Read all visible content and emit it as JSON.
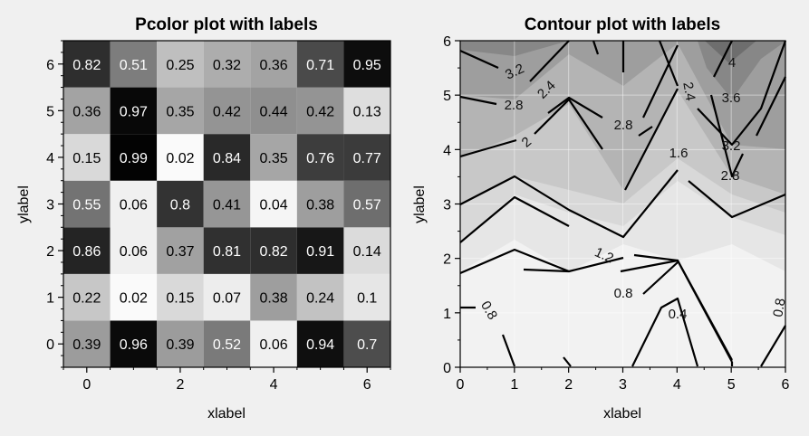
{
  "chart_data": [
    {
      "type": "heatmap",
      "title": "Pcolor plot with labels",
      "xlabel": "xlabel",
      "ylabel": "ylabel",
      "xlim": [
        -0.5,
        6.5
      ],
      "ylim": [
        -0.5,
        6.5
      ],
      "xticks": [
        0,
        2,
        4,
        6
      ],
      "yticks": [
        0,
        1,
        2,
        3,
        4,
        5,
        6
      ],
      "colormap": "grayscale (0 = white, 1 = black)",
      "labels": [
        "0.39",
        "0.96",
        "0.39",
        "0.52",
        "0.06",
        "0.94",
        "0.7",
        "0.22",
        "0.02",
        "0.15",
        "0.07",
        "0.38",
        "0.24",
        "0.1",
        "0.86",
        "0.06",
        "0.37",
        "0.81",
        "0.82",
        "0.91",
        "0.14",
        "0.55",
        "0.06",
        "0.8",
        "0.41",
        "0.04",
        "0.38",
        "0.57",
        "0.15",
        "0.99",
        "0.02",
        "0.84",
        "0.35",
        "0.76",
        "0.77",
        "0.36",
        "0.97",
        "0.35",
        "0.42",
        "0.44",
        "0.42",
        "0.13",
        "0.82",
        "0.51",
        "0.25",
        "0.32",
        "0.36",
        "0.71",
        "0.95"
      ],
      "values": [
        [
          0.39,
          0.96,
          0.39,
          0.52,
          0.06,
          0.94,
          0.7
        ],
        [
          0.22,
          0.02,
          0.15,
          0.07,
          0.38,
          0.24,
          0.1
        ],
        [
          0.86,
          0.06,
          0.37,
          0.81,
          0.82,
          0.91,
          0.14
        ],
        [
          0.55,
          0.06,
          0.8,
          0.41,
          0.04,
          0.38,
          0.57
        ],
        [
          0.15,
          0.99,
          0.02,
          0.84,
          0.35,
          0.76,
          0.77
        ],
        [
          0.36,
          0.97,
          0.35,
          0.42,
          0.44,
          0.42,
          0.13
        ],
        [
          0.82,
          0.51,
          0.25,
          0.32,
          0.36,
          0.71,
          0.95
        ]
      ],
      "rows_note": "values[i] is y = i, columns are x = 0..6"
    },
    {
      "type": "contour",
      "title": "Contour plot with labels",
      "xlabel": "xlabel",
      "ylabel": "ylabel",
      "xlim": [
        0,
        6
      ],
      "ylim": [
        0,
        6
      ],
      "xticks": [
        0,
        1,
        2,
        3,
        4,
        5,
        6
      ],
      "yticks": [
        0,
        1,
        2,
        3,
        4,
        5,
        6
      ],
      "grid": true,
      "levels": [
        0.4,
        0.8,
        1.2,
        1.6,
        2.0,
        2.4,
        2.8,
        3.2,
        3.6,
        4.0
      ],
      "level_labels": [
        "0.4",
        "0.8",
        "1.2",
        "1.6",
        "2",
        "2.4",
        "2.8",
        "3.2",
        "3.6",
        "4"
      ],
      "inline_labels": [
        "3.2",
        "2.8",
        "2.4",
        "2",
        "2.8",
        "2.4",
        "4",
        "3.6",
        "3.2",
        "2.8",
        "1.6",
        "1.2",
        "0.8",
        "0.4",
        "0.8",
        "0.8"
      ]
    }
  ]
}
